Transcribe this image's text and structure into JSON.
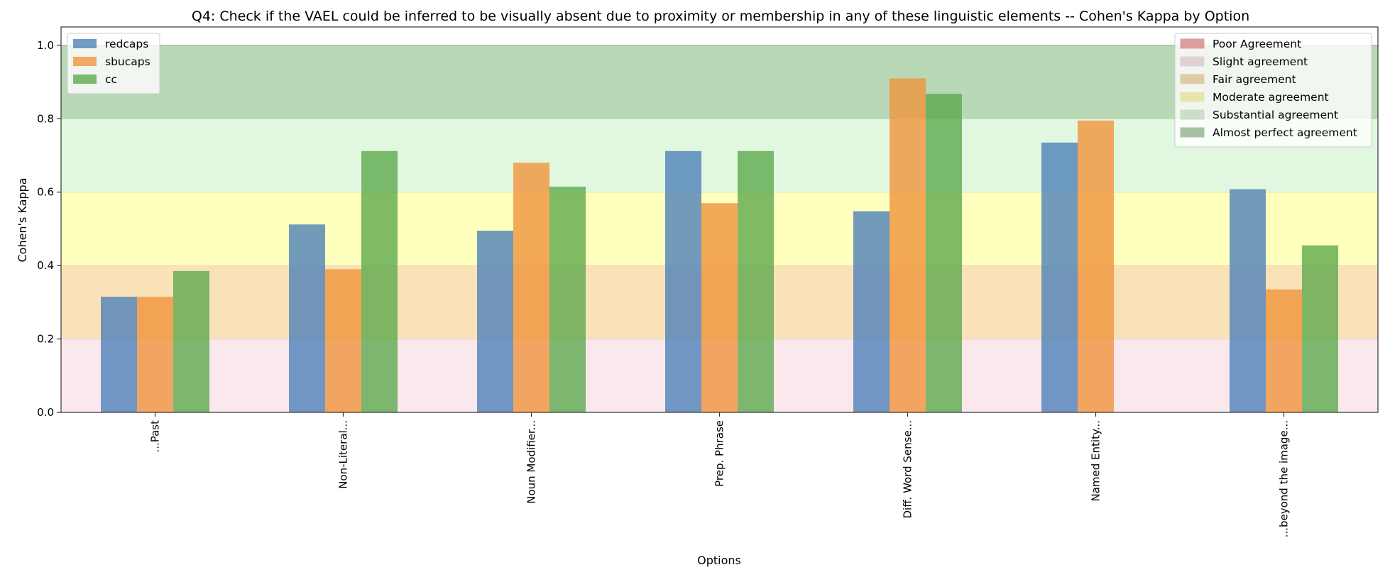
{
  "chart_data": {
    "type": "bar",
    "title": "Q4: Check if the VAEL could be inferred to be visually absent due to proximity or membership in any of these linguistic elements -- Cohen's Kappa by Option",
    "xlabel": "Options",
    "ylabel": "Cohen's Kappa",
    "ylim": [
      0,
      1.05
    ],
    "yticks": [
      "0.0",
      "0.2",
      "0.4",
      "0.6",
      "0.8",
      "1.0"
    ],
    "categories": [
      "...Past",
      "Non-Literal...",
      "Noun Modifier...",
      "Prep. Phrase",
      "Diff. Word Sense...",
      "Named Entity...",
      "...beyond the image..."
    ],
    "series": [
      {
        "name": "redcaps",
        "color": "#4a7fb9",
        "values": [
          0.315,
          0.512,
          0.495,
          0.712,
          0.548,
          0.735,
          0.608
        ]
      },
      {
        "name": "sbucaps",
        "color": "#f0923a",
        "values": [
          0.315,
          0.39,
          0.68,
          0.57,
          0.91,
          0.795,
          0.335
        ]
      },
      {
        "name": "cc",
        "color": "#5aa84a",
        "values": [
          0.385,
          0.712,
          0.615,
          0.712,
          0.868,
          null,
          0.455
        ]
      }
    ],
    "bands": [
      {
        "name": "Poor Agreement",
        "range": [
          -1,
          0
        ],
        "color": "#f5b0b0"
      },
      {
        "name": "Slight agreement",
        "range": [
          0,
          0.2
        ],
        "color": "#fae8ec"
      },
      {
        "name": "Fair agreement",
        "range": [
          0.2,
          0.4
        ],
        "color": "#f9e2b8"
      },
      {
        "name": "Moderate agreement",
        "range": [
          0.4,
          0.6
        ],
        "color": "#ffffbe"
      },
      {
        "name": "Substantial agreement",
        "range": [
          0.6,
          0.8
        ],
        "color": "#e1f7df"
      },
      {
        "name": "Almost perfect agreement",
        "range": [
          0.8,
          1.0
        ],
        "color": "#b9d8b5"
      }
    ],
    "series_legend_placement": "upper-left",
    "band_legend_placement": "upper-right",
    "grid": false
  }
}
